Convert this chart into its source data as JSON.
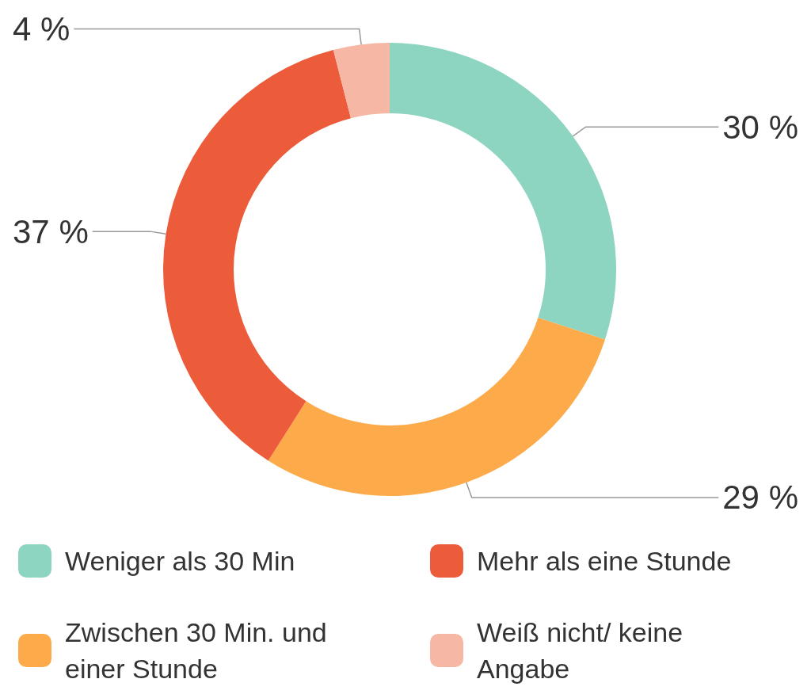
{
  "chart_data": {
    "type": "donut",
    "categories": [
      "Weniger als 30 Min",
      "Zwischen 30 Min. und einer Stunde",
      "Mehr als eine Stunde",
      "Weiß nicht/ keine Angabe"
    ],
    "values": [
      30,
      29,
      37,
      4
    ],
    "colors": [
      "#8dd5c0",
      "#fdaa4a",
      "#ec5b3a",
      "#f6b7a5"
    ],
    "value_labels": [
      "30 %",
      "29 %",
      "37 %",
      "4 %"
    ],
    "legend": "bottom"
  }
}
